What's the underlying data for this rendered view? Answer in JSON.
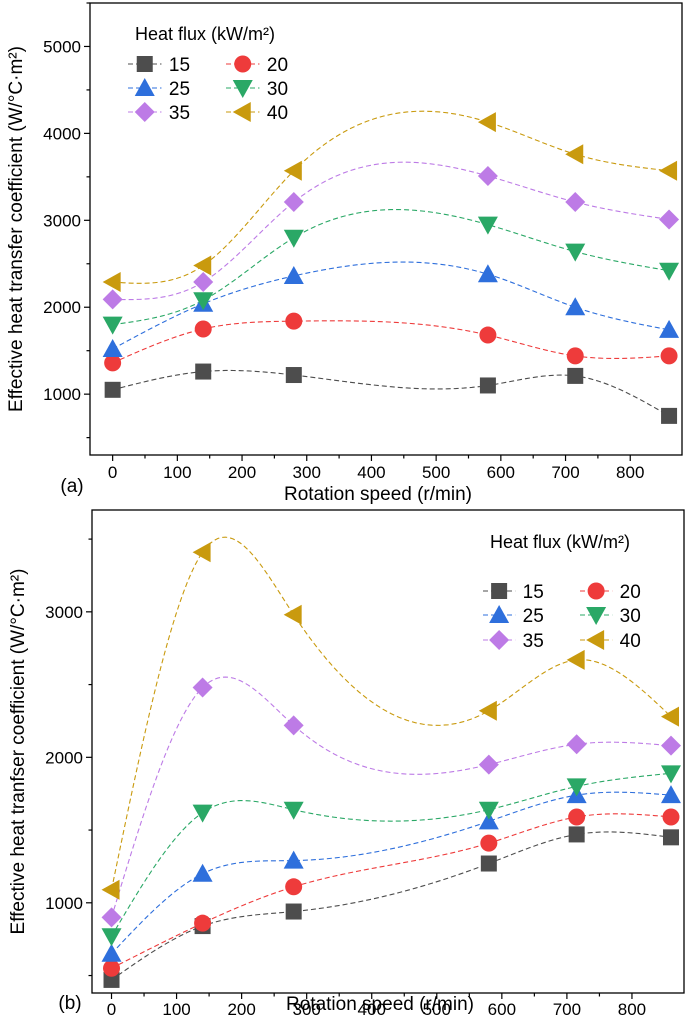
{
  "chart_data": [
    {
      "panel_label": "(a)",
      "type": "scatter",
      "xlabel": "Rotation speed (r/min)",
      "ylabel": "Effective heat transfer coefficient (W/°C·m²)",
      "xlim": [
        -35,
        880
      ],
      "ylim": [
        300,
        5500
      ],
      "xticks": [
        0,
        100,
        200,
        300,
        400,
        500,
        600,
        700,
        800
      ],
      "yticks": [
        1000,
        2000,
        3000,
        4000,
        5000
      ],
      "legend_title": "Heat flux (kW/m²)",
      "legend_position": "top-left",
      "x": [
        0,
        140,
        280,
        580,
        715,
        860
      ],
      "series": [
        {
          "name": "15",
          "marker": "square",
          "color": "#4d4d4d",
          "values": [
            1050,
            1260,
            1220,
            1100,
            1210,
            750
          ]
        },
        {
          "name": "20",
          "marker": "circle",
          "color": "#ee3b3b",
          "values": [
            1360,
            1750,
            1840,
            1680,
            1440,
            1440
          ]
        },
        {
          "name": "25",
          "marker": "triangle-up",
          "color": "#2e6fdc",
          "values": [
            1520,
            2040,
            2360,
            2380,
            2000,
            1740
          ]
        },
        {
          "name": "30",
          "marker": "triangle-down",
          "color": "#2aa866",
          "values": [
            1800,
            2080,
            2800,
            2950,
            2640,
            2420
          ]
        },
        {
          "name": "35",
          "marker": "diamond",
          "color": "#bd7be6",
          "values": [
            2090,
            2290,
            3210,
            3510,
            3210,
            3010
          ]
        },
        {
          "name": "40",
          "marker": "triangle-left",
          "color": "#c99a0e",
          "values": [
            2290,
            2480,
            3570,
            4130,
            3760,
            3570
          ]
        }
      ]
    },
    {
      "panel_label": "(b)",
      "type": "scatter",
      "xlabel": "Rotation speed (r/min)",
      "ylabel": "Effective heat tranfser coefficient (W/°C·m²)",
      "xlim": [
        -30,
        880
      ],
      "ylim": [
        380,
        3700
      ],
      "xticks": [
        0,
        100,
        200,
        300,
        400,
        500,
        600,
        700,
        800
      ],
      "yticks": [
        1000,
        2000,
        3000
      ],
      "legend_title": "Heat flux (kW/m²)",
      "legend_position": "top-right",
      "x": [
        0,
        140,
        280,
        580,
        715,
        860
      ],
      "series": [
        {
          "name": "15",
          "marker": "square",
          "color": "#4d4d4d",
          "values": [
            470,
            840,
            940,
            1270,
            1470,
            1450
          ]
        },
        {
          "name": "20",
          "marker": "circle",
          "color": "#ee3b3b",
          "values": [
            550,
            860,
            1110,
            1410,
            1590,
            1590
          ]
        },
        {
          "name": "25",
          "marker": "triangle-up",
          "color": "#2e6fdc",
          "values": [
            650,
            1200,
            1290,
            1560,
            1740,
            1740
          ]
        },
        {
          "name": "30",
          "marker": "triangle-down",
          "color": "#2aa866",
          "values": [
            770,
            1620,
            1640,
            1640,
            1800,
            1890
          ]
        },
        {
          "name": "35",
          "marker": "diamond",
          "color": "#bd7be6",
          "values": [
            900,
            2480,
            2220,
            1950,
            2090,
            2080
          ]
        },
        {
          "name": "40",
          "marker": "triangle-left",
          "color": "#c99a0e",
          "values": [
            1090,
            3410,
            2980,
            2320,
            2670,
            2280
          ]
        }
      ]
    }
  ]
}
